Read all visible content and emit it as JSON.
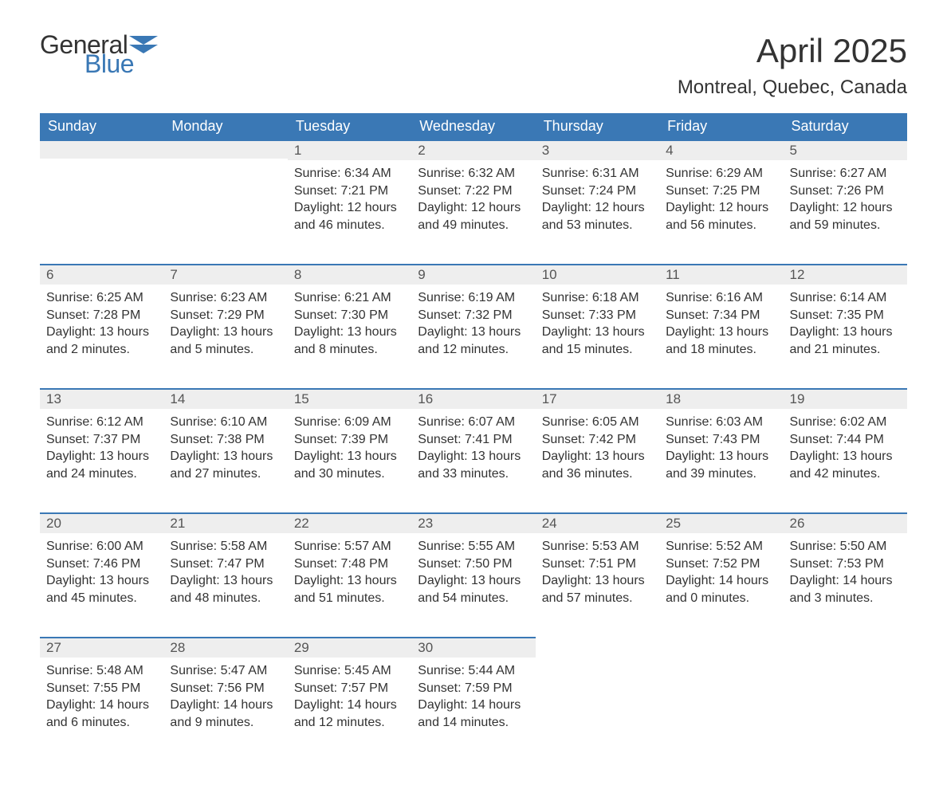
{
  "brand": {
    "word1": "General",
    "word2": "Blue",
    "flag_color": "#3a78b5"
  },
  "title": "April 2025",
  "location": "Montreal, Quebec, Canada",
  "colors": {
    "header_bg": "#3a78b5",
    "header_text": "#ffffff",
    "daynum_bg": "#eeeeee",
    "daynum_border": "#3a78b5",
    "body_text": "#333333",
    "page_bg": "#ffffff"
  },
  "fonts": {
    "title_size_pt": 32,
    "location_size_pt": 18,
    "header_size_pt": 14,
    "body_size_pt": 12
  },
  "day_labels": [
    "Sunday",
    "Monday",
    "Tuesday",
    "Wednesday",
    "Thursday",
    "Friday",
    "Saturday"
  ],
  "weeks": [
    [
      null,
      null,
      {
        "n": "1",
        "sr": "6:34 AM",
        "ss": "7:21 PM",
        "dl": "12 hours and 46 minutes."
      },
      {
        "n": "2",
        "sr": "6:32 AM",
        "ss": "7:22 PM",
        "dl": "12 hours and 49 minutes."
      },
      {
        "n": "3",
        "sr": "6:31 AM",
        "ss": "7:24 PM",
        "dl": "12 hours and 53 minutes."
      },
      {
        "n": "4",
        "sr": "6:29 AM",
        "ss": "7:25 PM",
        "dl": "12 hours and 56 minutes."
      },
      {
        "n": "5",
        "sr": "6:27 AM",
        "ss": "7:26 PM",
        "dl": "12 hours and 59 minutes."
      }
    ],
    [
      {
        "n": "6",
        "sr": "6:25 AM",
        "ss": "7:28 PM",
        "dl": "13 hours and 2 minutes."
      },
      {
        "n": "7",
        "sr": "6:23 AM",
        "ss": "7:29 PM",
        "dl": "13 hours and 5 minutes."
      },
      {
        "n": "8",
        "sr": "6:21 AM",
        "ss": "7:30 PM",
        "dl": "13 hours and 8 minutes."
      },
      {
        "n": "9",
        "sr": "6:19 AM",
        "ss": "7:32 PM",
        "dl": "13 hours and 12 minutes."
      },
      {
        "n": "10",
        "sr": "6:18 AM",
        "ss": "7:33 PM",
        "dl": "13 hours and 15 minutes."
      },
      {
        "n": "11",
        "sr": "6:16 AM",
        "ss": "7:34 PM",
        "dl": "13 hours and 18 minutes."
      },
      {
        "n": "12",
        "sr": "6:14 AM",
        "ss": "7:35 PM",
        "dl": "13 hours and 21 minutes."
      }
    ],
    [
      {
        "n": "13",
        "sr": "6:12 AM",
        "ss": "7:37 PM",
        "dl": "13 hours and 24 minutes."
      },
      {
        "n": "14",
        "sr": "6:10 AM",
        "ss": "7:38 PM",
        "dl": "13 hours and 27 minutes."
      },
      {
        "n": "15",
        "sr": "6:09 AM",
        "ss": "7:39 PM",
        "dl": "13 hours and 30 minutes."
      },
      {
        "n": "16",
        "sr": "6:07 AM",
        "ss": "7:41 PM",
        "dl": "13 hours and 33 minutes."
      },
      {
        "n": "17",
        "sr": "6:05 AM",
        "ss": "7:42 PM",
        "dl": "13 hours and 36 minutes."
      },
      {
        "n": "18",
        "sr": "6:03 AM",
        "ss": "7:43 PM",
        "dl": "13 hours and 39 minutes."
      },
      {
        "n": "19",
        "sr": "6:02 AM",
        "ss": "7:44 PM",
        "dl": "13 hours and 42 minutes."
      }
    ],
    [
      {
        "n": "20",
        "sr": "6:00 AM",
        "ss": "7:46 PM",
        "dl": "13 hours and 45 minutes."
      },
      {
        "n": "21",
        "sr": "5:58 AM",
        "ss": "7:47 PM",
        "dl": "13 hours and 48 minutes."
      },
      {
        "n": "22",
        "sr": "5:57 AM",
        "ss": "7:48 PM",
        "dl": "13 hours and 51 minutes."
      },
      {
        "n": "23",
        "sr": "5:55 AM",
        "ss": "7:50 PM",
        "dl": "13 hours and 54 minutes."
      },
      {
        "n": "24",
        "sr": "5:53 AM",
        "ss": "7:51 PM",
        "dl": "13 hours and 57 minutes."
      },
      {
        "n": "25",
        "sr": "5:52 AM",
        "ss": "7:52 PM",
        "dl": "14 hours and 0 minutes."
      },
      {
        "n": "26",
        "sr": "5:50 AM",
        "ss": "7:53 PM",
        "dl": "14 hours and 3 minutes."
      }
    ],
    [
      {
        "n": "27",
        "sr": "5:48 AM",
        "ss": "7:55 PM",
        "dl": "14 hours and 6 minutes."
      },
      {
        "n": "28",
        "sr": "5:47 AM",
        "ss": "7:56 PM",
        "dl": "14 hours and 9 minutes."
      },
      {
        "n": "29",
        "sr": "5:45 AM",
        "ss": "7:57 PM",
        "dl": "14 hours and 12 minutes."
      },
      {
        "n": "30",
        "sr": "5:44 AM",
        "ss": "7:59 PM",
        "dl": "14 hours and 14 minutes."
      },
      null,
      null,
      null
    ]
  ],
  "labels": {
    "sunrise": "Sunrise: ",
    "sunset": "Sunset: ",
    "daylight": "Daylight: "
  }
}
